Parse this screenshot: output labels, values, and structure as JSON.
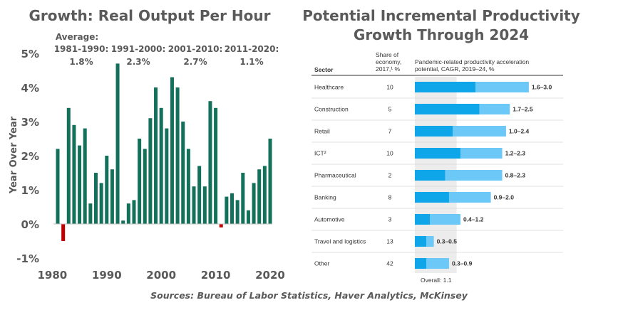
{
  "chart_data": [
    {
      "type": "bar",
      "title": "Growth: Real Output Per Hour",
      "ylabel": "Year Over Year",
      "xlabel": "",
      "ylim": [
        -1,
        5
      ],
      "y_ticks": [
        "-1%",
        "0%",
        "1%",
        "2%",
        "3%",
        "4%",
        "5%"
      ],
      "x_ticks": [
        "1980",
        "1990",
        "2000",
        "2010",
        "2020"
      ],
      "colors": {
        "positive": "#13705a",
        "negative": "#c00000"
      },
      "averages": {
        "heading": "Average:",
        "periods": [
          {
            "label": "1981-1990:",
            "value": "1.8%"
          },
          {
            "label": "1991-2000:",
            "value": "2.3%"
          },
          {
            "label": "2001-2010:",
            "value": "2.7%"
          },
          {
            "label": "2011-2020:",
            "value": "1.1%"
          }
        ]
      },
      "x": [
        1981,
        1982,
        1983,
        1984,
        1985,
        1986,
        1987,
        1988,
        1989,
        1990,
        1991,
        1992,
        1993,
        1994,
        1995,
        1996,
        1997,
        1998,
        1999,
        2000,
        2001,
        2002,
        2003,
        2004,
        2005,
        2006,
        2007,
        2008,
        2009,
        2010,
        2011,
        2012,
        2013,
        2014,
        2015,
        2016,
        2017,
        2018,
        2019,
        2020
      ],
      "values": [
        2.2,
        -0.5,
        3.4,
        2.9,
        2.3,
        2.8,
        0.6,
        1.5,
        1.2,
        2.0,
        1.6,
        4.7,
        0.1,
        0.6,
        0.7,
        2.5,
        2.2,
        3.1,
        4.0,
        3.4,
        2.8,
        4.3,
        4.0,
        3.0,
        2.2,
        1.1,
        1.7,
        1.1,
        3.6,
        3.4,
        -0.1,
        0.8,
        0.9,
        0.7,
        1.5,
        0.4,
        1.2,
        1.6,
        1.7,
        2.5
      ]
    },
    {
      "type": "bar",
      "title_lines": [
        "Potential Incremental Productivity",
        "Growth Through 2024"
      ],
      "headers": {
        "sector": "Sector",
        "share": [
          "Share of",
          "economy,",
          "2017,¹ %"
        ],
        "accel": [
          "Pandemic-related productivity acceleration",
          "potential, CAGR, 2019–24, %"
        ]
      },
      "overall_label": "Overall: 1.1",
      "overall_value": 1.1,
      "colors": {
        "low": "#0ea5e9",
        "high": "#6cc9f7",
        "band": "#ececec"
      },
      "rows": [
        {
          "sector": "Healthcare",
          "share": "10",
          "low": 1.6,
          "high": 3.0,
          "label": "1.6–3.0"
        },
        {
          "sector": "Construction",
          "share": "5",
          "low": 1.7,
          "high": 2.5,
          "label": "1.7–2.5"
        },
        {
          "sector": "Retail",
          "share": "7",
          "low": 1.0,
          "high": 2.4,
          "label": "1.0–2.4"
        },
        {
          "sector": "ICT²",
          "share": "10",
          "low": 1.2,
          "high": 2.3,
          "label": "1.2–2.3"
        },
        {
          "sector": "Pharmaceutical",
          "share": "2",
          "low": 0.8,
          "high": 2.3,
          "label": "0.8–2.3"
        },
        {
          "sector": "Banking",
          "share": "8",
          "low": 0.9,
          "high": 2.0,
          "label": "0.9–2.0"
        },
        {
          "sector": "Automotive",
          "share": "3",
          "low": 0.4,
          "high": 1.2,
          "label": "0.4–1.2"
        },
        {
          "sector": "Travel and logistics",
          "share": "13",
          "low": 0.3,
          "high": 0.5,
          "label": "0.3–0.5"
        },
        {
          "sector": "Other",
          "share": "42",
          "low": 0.3,
          "high": 0.9,
          "label": "0.3–0.9"
        }
      ]
    }
  ],
  "sources": "Sources: Bureau of Labor Statistics, Haver Analytics, McKinsey"
}
